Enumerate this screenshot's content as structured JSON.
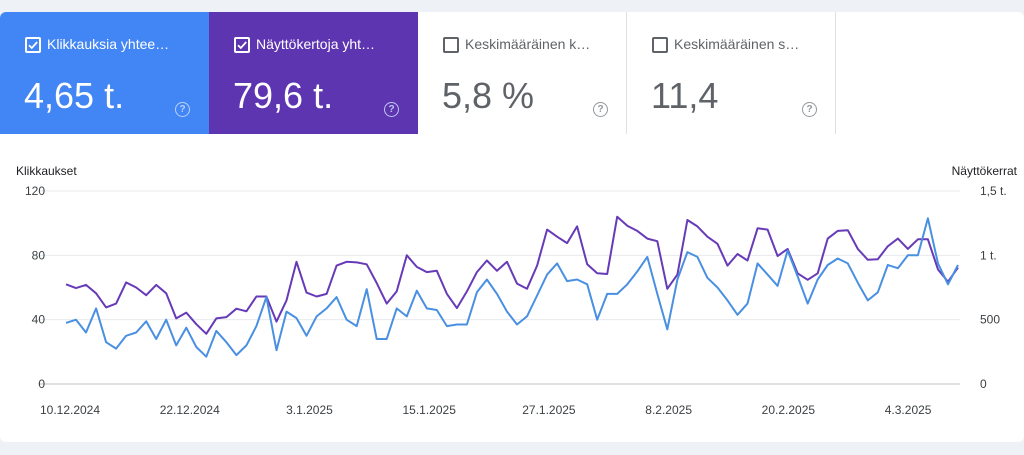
{
  "cards": [
    {
      "label": "Klikkauksia yhtee…",
      "value": "4,65 t.",
      "checked": true,
      "color": "#4285f4",
      "help_icon": "help-circle-icon"
    },
    {
      "label": "Näyttökertoja yht…",
      "value": "79,6 t.",
      "checked": true,
      "color": "#5e35b1",
      "help_icon": "help-circle-icon"
    },
    {
      "label": "Keskimääräinen k…",
      "value": "5,8 %",
      "checked": false,
      "color": "#ffffff",
      "help_icon": "help-circle-icon"
    },
    {
      "label": "Keskimääräinen s…",
      "value": "11,4",
      "checked": false,
      "color": "#ffffff",
      "help_icon": "help-circle-icon"
    }
  ],
  "chart_data": {
    "type": "line",
    "ylabel_left": "Klikkaukset",
    "ylabel_right": "Näyttökerrat",
    "left_ticks": [
      "0",
      "40",
      "80",
      "120"
    ],
    "right_ticks": [
      "0",
      "500",
      "1 t.",
      "1,5 t."
    ],
    "ylim_left": [
      0,
      120
    ],
    "ylim_right": [
      0,
      1500
    ],
    "grid": true,
    "x_start": "2024-12-10",
    "x_end": "2025-03-09",
    "xtick_labels": [
      "10.12.2024",
      "22.12.2024",
      "3.1.2025",
      "15.1.2025",
      "27.1.2025",
      "8.2.2025",
      "20.2.2025",
      "4.3.2025"
    ],
    "series": [
      {
        "name": "Klikkaukset",
        "axis": "left",
        "color": "#4a90e2",
        "values": [
          38,
          40,
          32,
          47,
          26,
          22,
          30,
          32,
          39,
          28,
          40,
          24,
          35,
          23,
          17,
          33,
          26,
          18,
          24,
          36,
          54,
          21,
          45,
          41,
          30,
          42,
          47,
          54,
          40,
          36,
          59,
          28,
          28,
          47,
          42,
          58,
          47,
          46,
          36,
          37,
          37,
          57,
          65,
          56,
          45,
          37,
          42,
          55,
          68,
          75,
          64,
          65,
          62,
          40,
          56,
          56,
          62,
          70,
          79,
          56,
          34,
          65,
          82,
          79,
          66,
          60,
          52,
          43,
          50,
          75,
          68,
          61,
          83,
          67,
          50,
          65,
          74,
          78,
          75,
          63,
          52,
          57,
          74,
          72,
          80,
          80,
          103,
          75,
          62,
          74
        ]
      },
      {
        "name": "Näyttökerrat",
        "axis": "right",
        "color": "#673ab7",
        "values": [
          775,
          745,
          770,
          705,
          595,
          625,
          790,
          750,
          690,
          770,
          705,
          510,
          555,
          465,
          390,
          510,
          520,
          585,
          565,
          680,
          680,
          485,
          650,
          950,
          710,
          680,
          700,
          920,
          950,
          945,
          930,
          785,
          625,
          720,
          1000,
          910,
          870,
          880,
          700,
          590,
          720,
          870,
          960,
          880,
          950,
          780,
          740,
          920,
          1200,
          1145,
          1095,
          1225,
          930,
          860,
          855,
          1300,
          1230,
          1190,
          1130,
          1110,
          740,
          850,
          1275,
          1225,
          1145,
          1090,
          920,
          1010,
          960,
          1210,
          1200,
          995,
          1050,
          860,
          810,
          860,
          1130,
          1190,
          1195,
          1050,
          965,
          970,
          1070,
          1130,
          1050,
          1125,
          1125,
          890,
          795,
          905
        ]
      }
    ]
  }
}
